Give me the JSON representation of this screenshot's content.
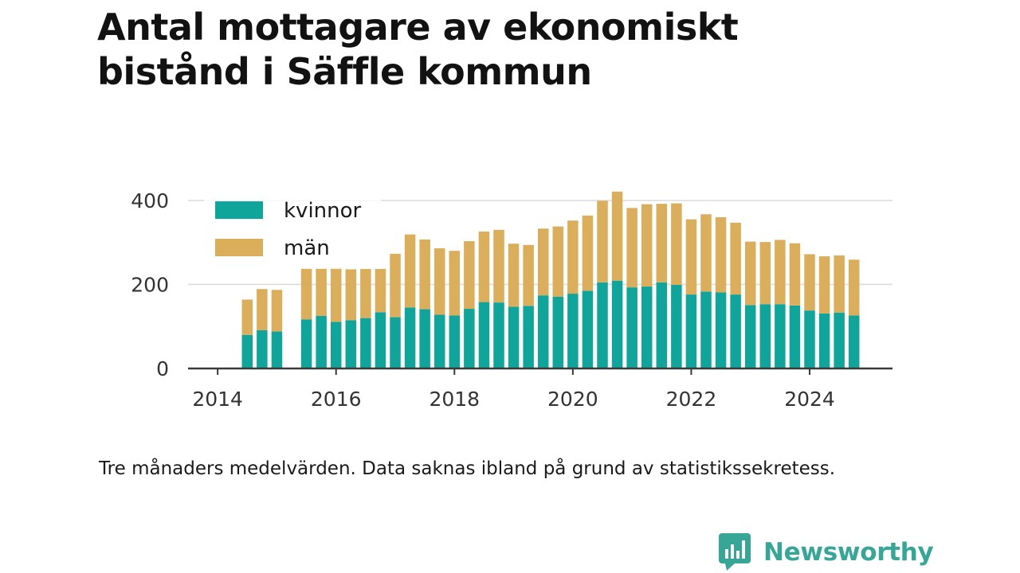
{
  "title": "Antal mottagare av ekonomiskt bistånd i Säffle kommun",
  "note": "Tre månaders medelvärden. Data saknas ibland på grund av statistikssekretess.",
  "brand": {
    "name": "Newsworthy",
    "icon": "bar-chart-speech-bubble-logo"
  },
  "colors": {
    "kvinnor": "#0fa59a",
    "man": "#dbae5b",
    "axis": "#3a3a3a",
    "grid": "#dcdcdc",
    "text": "#333333"
  },
  "chart_data": {
    "type": "bar",
    "stacked": true,
    "x_unit": "year",
    "xlim": [
      2013.5,
      2025.4
    ],
    "ylim": [
      0,
      430
    ],
    "x_ticks": [
      2014,
      2016,
      2018,
      2020,
      2022,
      2024
    ],
    "y_ticks": [
      0,
      200,
      400
    ],
    "grid": "horizontal",
    "legend_position": "top-left",
    "x": [
      2014.5,
      2014.75,
      2015.0,
      2015.5,
      2015.75,
      2016.0,
      2016.25,
      2016.5,
      2016.75,
      2017.0,
      2017.25,
      2017.5,
      2017.75,
      2018.0,
      2018.25,
      2018.5,
      2018.75,
      2019.0,
      2019.25,
      2019.5,
      2019.75,
      2020.0,
      2020.25,
      2020.5,
      2020.75,
      2021.0,
      2021.25,
      2021.5,
      2021.75,
      2022.0,
      2022.25,
      2022.5,
      2022.75,
      2023.0,
      2023.25,
      2023.5,
      2023.75,
      2024.0,
      2024.25,
      2024.5,
      2024.75
    ],
    "series": [
      {
        "name": "kvinnor",
        "values": [
          80,
          91,
          88,
          117,
          125,
          111,
          115,
          120,
          134,
          122,
          145,
          141,
          128,
          126,
          142,
          158,
          157,
          147,
          149,
          174,
          171,
          178,
          185,
          205,
          209,
          193,
          195,
          205,
          199,
          176,
          183,
          181,
          176,
          151,
          153,
          153,
          150,
          138,
          131,
          133,
          126
        ]
      },
      {
        "name": "män",
        "values": [
          84,
          98,
          99,
          122,
          114,
          129,
          121,
          117,
          103,
          151,
          174,
          166,
          158,
          154,
          161,
          168,
          173,
          150,
          145,
          159,
          167,
          174,
          179,
          194,
          212,
          189,
          196,
          187,
          194,
          179,
          184,
          179,
          171,
          151,
          148,
          153,
          148,
          134,
          136,
          136,
          133
        ]
      }
    ]
  }
}
